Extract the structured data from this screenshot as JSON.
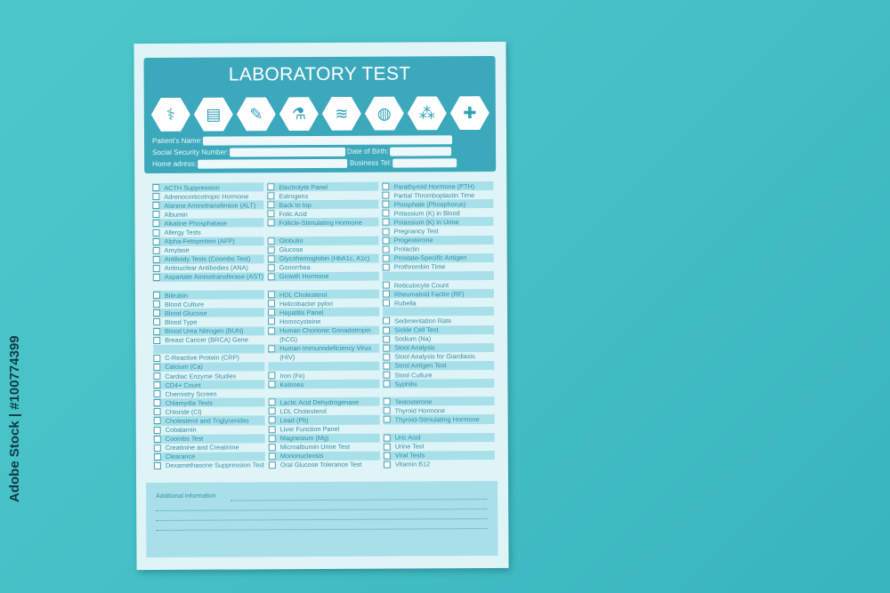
{
  "title": "LABORATORY TEST",
  "icons": [
    "stethoscope-icon",
    "clipboard-icon",
    "syringe-icon",
    "flask-icon",
    "dna-icon",
    "globe-icon",
    "molecule-icon",
    "first-aid-kit-icon"
  ],
  "fields": {
    "patient_name": "Patient's Name:",
    "ssn": "Social Security Number:",
    "dob": "Date of  Birth:",
    "home_address": "Home adress:",
    "business_tel": "Business Tel:"
  },
  "columns": [
    [
      {
        "label": "ACTH Suppression"
      },
      {
        "label": "Adrenocorticotropic Hormone"
      },
      {
        "label": "Alanine Aminotransferase (ALT)"
      },
      {
        "label": "Albumin"
      },
      {
        "label": "Alkaline Phosphatase"
      },
      {
        "label": "Allergy Tests"
      },
      {
        "label": "Alpha-Fetoprotein (AFP)"
      },
      {
        "label": "Amylase"
      },
      {
        "label": "Antibody Tests (Coombs Test)"
      },
      {
        "label": "Antinuclear Antibodies (ANA)"
      },
      {
        "label": "Aspartate Aminotransferase (AST)"
      },
      {
        "label": ""
      },
      {
        "label": "Bilirubin"
      },
      {
        "label": "Blood Culture"
      },
      {
        "label": "Blood Glucose"
      },
      {
        "label": "Blood Type"
      },
      {
        "label": "Blood Urea Nitrogen (BUN)"
      },
      {
        "label": "Breast Cancer (BRCA) Gene"
      },
      {
        "label": ""
      },
      {
        "label": "C-Reactive Protein (CRP)"
      },
      {
        "label": "Calcium (Ca)"
      },
      {
        "label": "Cardiac Enzyme Studies"
      },
      {
        "label": "CD4+ Count"
      },
      {
        "label": "Chemistry Screen"
      },
      {
        "label": "Chlamydia Tests"
      },
      {
        "label": "Chloride (Cl)"
      },
      {
        "label": "Cholesterol and Triglycerides"
      },
      {
        "label": "Cobalamin"
      },
      {
        "label": "Coombs Test"
      },
      {
        "label": "Creatinine and Creatinine"
      },
      {
        "label": "Clearance"
      },
      {
        "label": "Dexamethasone Suppression Test"
      }
    ],
    [
      {
        "label": "Electrolyte Panel"
      },
      {
        "label": "Estrogens"
      },
      {
        "label": "Back to top"
      },
      {
        "label": "Folic Acid"
      },
      {
        "label": "Follicle-Stimulating Hormone"
      },
      {
        "label": ""
      },
      {
        "label": "Globulin"
      },
      {
        "label": "Glucose"
      },
      {
        "label": "Glycohemoglobin (HbA1c, A1c)"
      },
      {
        "label": "Gonorrhea"
      },
      {
        "label": "Growth Hormone"
      },
      {
        "label": ""
      },
      {
        "label": "HDL Cholesterol"
      },
      {
        "label": "Helicobacter pylori"
      },
      {
        "label": "Hepatitis Panel"
      },
      {
        "label": "Homocysteine"
      },
      {
        "label": "Human Chorionic Gonadotropin"
      },
      {
        "label": "(hCG)",
        "checkbox": false
      },
      {
        "label": "Human Immunodeficiency Virus"
      },
      {
        "label": "(HIV)",
        "checkbox": false
      },
      {
        "label": ""
      },
      {
        "label": "Iron (Fe)"
      },
      {
        "label": "Ketones"
      },
      {
        "label": ""
      },
      {
        "label": "Lactic Acid Dehydrogenase"
      },
      {
        "label": "LDL Cholesterol"
      },
      {
        "label": "Lead (Pb)"
      },
      {
        "label": "Liver Function Panel"
      },
      {
        "label": "Magnesium (Mg)"
      },
      {
        "label": "Microalbumin Urine Test"
      },
      {
        "label": "Mononucleosis"
      },
      {
        "label": "Oral Glucose Tolerance Test"
      }
    ],
    [
      {
        "label": "Parathyroid Hormone (PTH)"
      },
      {
        "label": "Partial Thromboplastin Time"
      },
      {
        "label": "Phosphate (Phosphorus)"
      },
      {
        "label": "Potassium (K) in Blood"
      },
      {
        "label": "Potassium (K) in Urine"
      },
      {
        "label": "Pregnancy Test"
      },
      {
        "label": "Progesterone"
      },
      {
        "label": "Prolactin"
      },
      {
        "label": "Prostate-Specific Antigen"
      },
      {
        "label": "Prothrombin Time"
      },
      {
        "label": ""
      },
      {
        "label": "Reticulocyte Count"
      },
      {
        "label": "Rheumatoid Factor (RF)"
      },
      {
        "label": "Rubella"
      },
      {
        "label": ""
      },
      {
        "label": "Sedimentation Rate"
      },
      {
        "label": "Sickle Cell Test"
      },
      {
        "label": "Sodium (Na)"
      },
      {
        "label": "Stool Analysis"
      },
      {
        "label": "Stool Analysis for Giardiasis"
      },
      {
        "label": "Stool Antigen Test"
      },
      {
        "label": "Stool Culture"
      },
      {
        "label": "Syphilis"
      },
      {
        "label": ""
      },
      {
        "label": "Testosterone"
      },
      {
        "label": "Thyroid Hormone"
      },
      {
        "label": "Thyroid-Stimulating Hormone"
      },
      {
        "label": ""
      },
      {
        "label": "Uric Acid"
      },
      {
        "label": "Urine Test"
      },
      {
        "label": "Viral Tests"
      },
      {
        "label": "Vitamin B12"
      }
    ]
  ],
  "additional_info": "Additional information",
  "watermark": "Adobe Stock | #100774399",
  "colors": {
    "background": "#45c0c6",
    "header": "#3ba8bc",
    "paper": "#dff4f7",
    "stripe": "#a8e0ea"
  }
}
